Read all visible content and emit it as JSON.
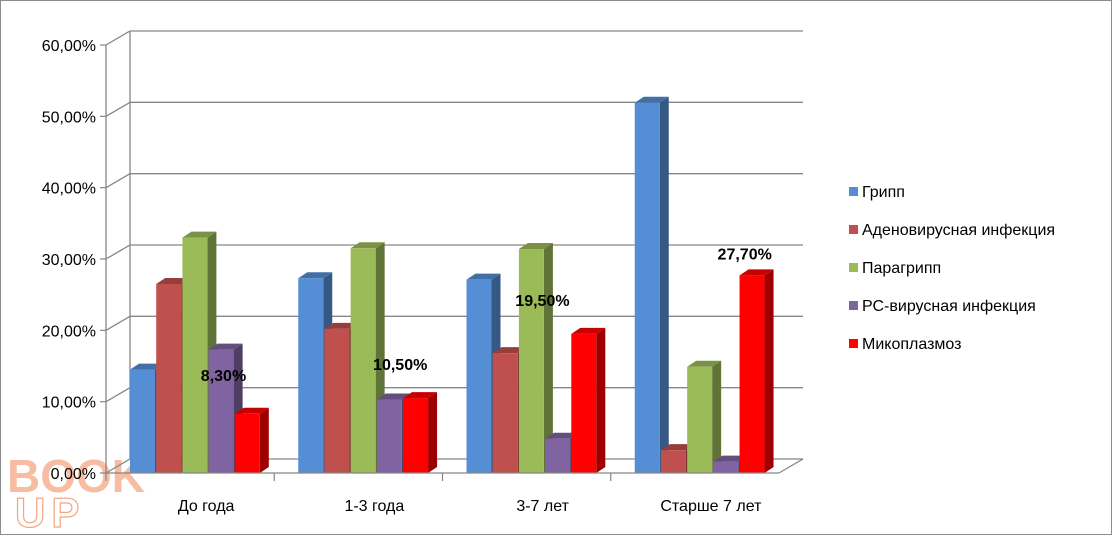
{
  "chart_data": {
    "type": "bar",
    "categories": [
      "До года",
      "1-3 года",
      "3-7 лет",
      "Старше 7 лет"
    ],
    "series": [
      {
        "name": "Грипп",
        "color": "#558ED5",
        "values": [
          14.5,
          27.3,
          27.1,
          51.9
        ]
      },
      {
        "name": "Аденовирусная инфекция",
        "color": "#C0504D",
        "values": [
          26.5,
          20.2,
          16.8,
          3.2
        ]
      },
      {
        "name": "Парагрипп",
        "color": "#9BBB59",
        "values": [
          33.0,
          31.5,
          31.4,
          14.9
        ]
      },
      {
        "name": "РС-вирусная инфекция",
        "color": "#8064A2",
        "values": [
          17.3,
          10.3,
          4.8,
          1.6
        ]
      },
      {
        "name": "Микоплазмоз",
        "color": "#FF0000",
        "values": [
          8.3,
          10.5,
          19.5,
          27.7
        ]
      }
    ],
    "data_labels": [
      {
        "series": "Микоплазмоз",
        "category": "До года",
        "text": "8,30%"
      },
      {
        "series": "Микоплазмоз",
        "category": "1-3 года",
        "text": "10,50%"
      },
      {
        "series": "Микоплазмоз",
        "category": "3-7 лет",
        "text": "19,50%"
      },
      {
        "series": "Микоплазмоз",
        "category": "Старше 7 лет",
        "text": "27,70%"
      }
    ],
    "y_ticks": [
      "0,00%",
      "10,00%",
      "20,00%",
      "30,00%",
      "40,00%",
      "50,00%",
      "60,00%"
    ],
    "ylim": [
      0,
      60
    ],
    "grid": true,
    "legend_position": "right",
    "title": "",
    "xlabel": "",
    "ylabel": ""
  },
  "watermark": {
    "text_top": "BOOK",
    "text_bottom": "UP",
    "color": "#F4A582"
  }
}
